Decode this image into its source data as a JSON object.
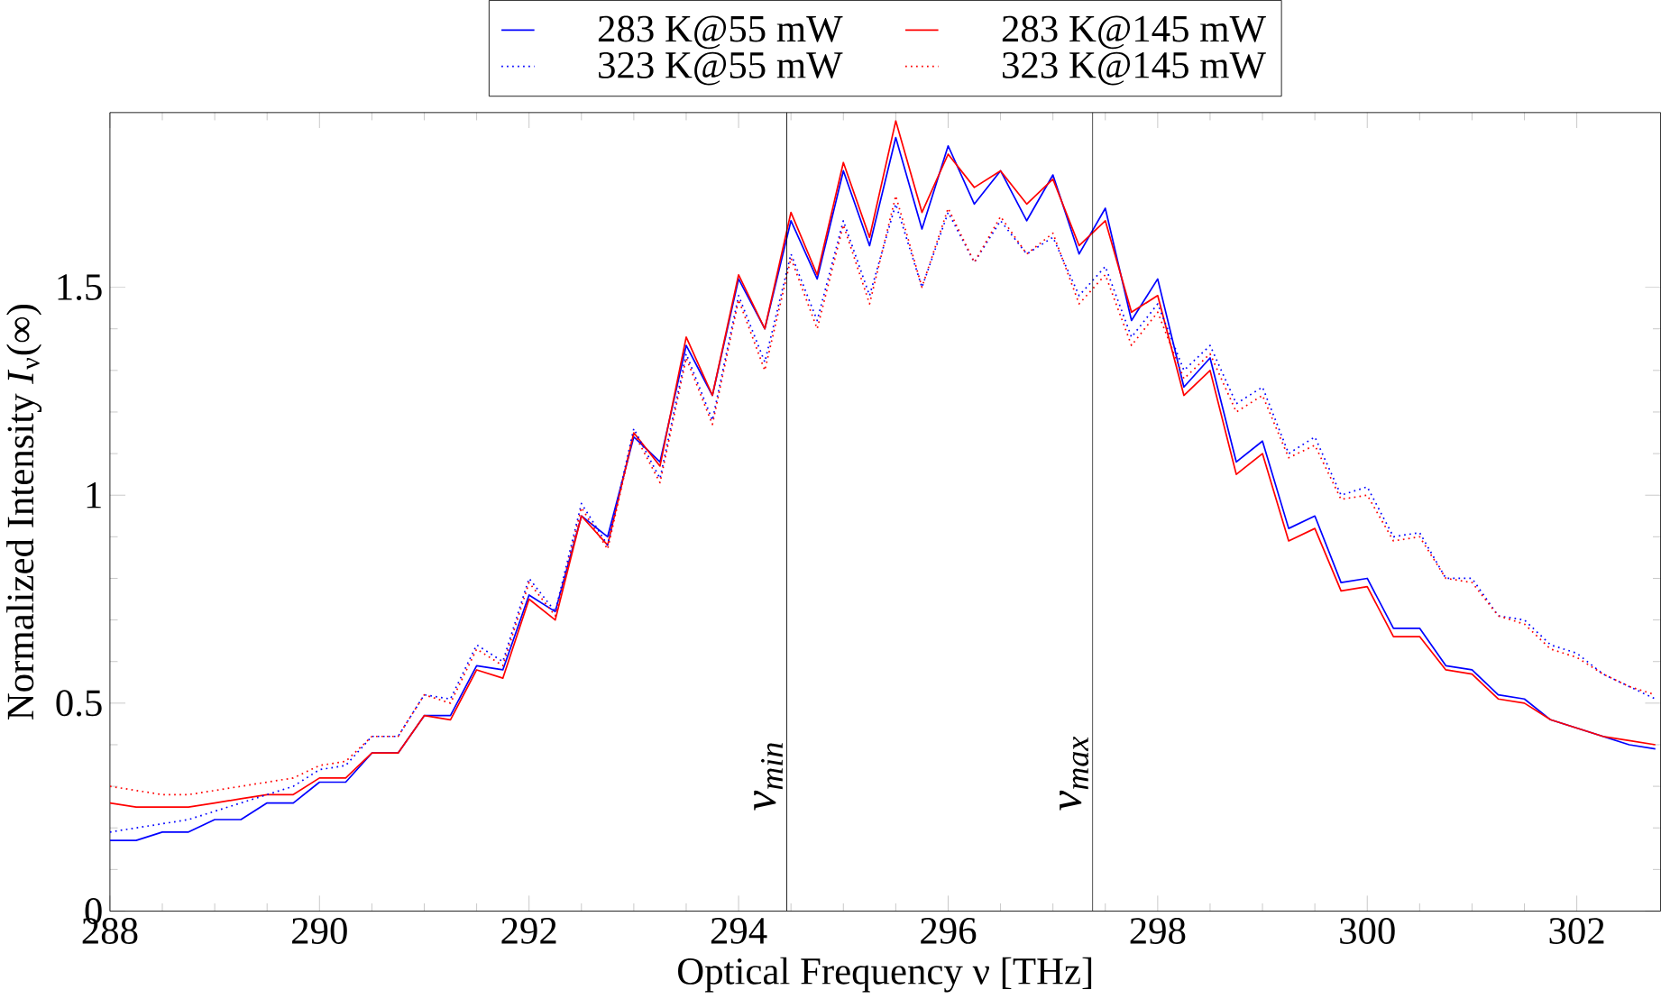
{
  "chart_data": {
    "type": "line",
    "xlabel": "Optical Frequency ν [THz]",
    "ylabel": "Normalized Intensity *I*$_{ν}$(∞)",
    "x": [
      288,
      288.25,
      288.5,
      288.75,
      289,
      289.25,
      289.5,
      289.75,
      290,
      290.25,
      290.5,
      290.75,
      291,
      291.25,
      291.5,
      291.75,
      292,
      292.25,
      292.5,
      292.75,
      293,
      293.25,
      293.5,
      293.75,
      294,
      294.25,
      294.5,
      294.75,
      295,
      295.25,
      295.5,
      295.75,
      296,
      296.25,
      296.5,
      296.75,
      297,
      297.25,
      297.5,
      297.75,
      298,
      298.25,
      298.5,
      298.75,
      299,
      299.25,
      299.5,
      299.75,
      300,
      300.25,
      300.5,
      300.75,
      301,
      301.25,
      301.5,
      301.75,
      302,
      302.25,
      302.5,
      302.75
    ],
    "series": [
      {
        "name": "283 K@55 mW",
        "color": "#0000ff",
        "line_style": "solid",
        "values": [
          0.17,
          0.17,
          0.19,
          0.19,
          0.22,
          0.22,
          0.26,
          0.26,
          0.31,
          0.31,
          0.38,
          0.38,
          0.47,
          0.47,
          0.59,
          0.58,
          0.76,
          0.72,
          0.95,
          0.9,
          1.14,
          1.08,
          1.36,
          1.24,
          1.52,
          1.4,
          1.66,
          1.52,
          1.78,
          1.6,
          1.86,
          1.64,
          1.84,
          1.7,
          1.78,
          1.66,
          1.77,
          1.58,
          1.69,
          1.42,
          1.52,
          1.26,
          1.33,
          1.08,
          1.13,
          0.92,
          0.95,
          0.79,
          0.8,
          0.68,
          0.68,
          0.59,
          0.58,
          0.52,
          0.51,
          0.46,
          0.44,
          0.42,
          0.4,
          0.39
        ]
      },
      {
        "name": "283 K@145 mW",
        "color": "#ff0000",
        "line_style": "solid",
        "values": [
          0.26,
          0.25,
          0.25,
          0.25,
          0.26,
          0.27,
          0.28,
          0.28,
          0.32,
          0.32,
          0.38,
          0.38,
          0.47,
          0.46,
          0.58,
          0.56,
          0.75,
          0.7,
          0.95,
          0.88,
          1.15,
          1.07,
          1.38,
          1.24,
          1.53,
          1.4,
          1.68,
          1.53,
          1.8,
          1.62,
          1.9,
          1.68,
          1.82,
          1.74,
          1.78,
          1.7,
          1.76,
          1.6,
          1.66,
          1.44,
          1.48,
          1.24,
          1.3,
          1.05,
          1.1,
          0.89,
          0.92,
          0.77,
          0.78,
          0.66,
          0.66,
          0.58,
          0.57,
          0.51,
          0.5,
          0.46,
          0.44,
          0.42,
          0.41,
          0.4
        ]
      },
      {
        "name": "323 K@55 mW",
        "color": "#0000ff",
        "line_style": "dotted",
        "values": [
          0.19,
          0.2,
          0.21,
          0.22,
          0.24,
          0.26,
          0.28,
          0.3,
          0.34,
          0.35,
          0.42,
          0.42,
          0.52,
          0.51,
          0.64,
          0.6,
          0.8,
          0.72,
          0.98,
          0.88,
          1.16,
          1.04,
          1.34,
          1.18,
          1.48,
          1.32,
          1.58,
          1.42,
          1.66,
          1.48,
          1.7,
          1.5,
          1.68,
          1.56,
          1.66,
          1.58,
          1.62,
          1.48,
          1.55,
          1.38,
          1.46,
          1.3,
          1.36,
          1.22,
          1.26,
          1.1,
          1.14,
          1.0,
          1.02,
          0.9,
          0.91,
          0.8,
          0.8,
          0.71,
          0.7,
          0.64,
          0.62,
          0.57,
          0.54,
          0.51
        ]
      },
      {
        "name": "323 K@145 mW",
        "color": "#ff0000",
        "line_style": "dotted",
        "values": [
          0.3,
          0.29,
          0.28,
          0.28,
          0.29,
          0.3,
          0.31,
          0.32,
          0.35,
          0.36,
          0.42,
          0.42,
          0.52,
          0.5,
          0.63,
          0.59,
          0.79,
          0.71,
          0.97,
          0.87,
          1.15,
          1.03,
          1.33,
          1.17,
          1.47,
          1.3,
          1.57,
          1.4,
          1.65,
          1.46,
          1.72,
          1.5,
          1.69,
          1.56,
          1.67,
          1.58,
          1.63,
          1.46,
          1.53,
          1.36,
          1.44,
          1.28,
          1.34,
          1.2,
          1.24,
          1.09,
          1.12,
          0.99,
          1.0,
          0.89,
          0.9,
          0.8,
          0.79,
          0.71,
          0.69,
          0.63,
          0.61,
          0.57,
          0.54,
          0.52
        ]
      }
    ],
    "xlim": [
      288,
      302.8
    ],
    "ylim": [
      0,
      1.92
    ],
    "xticks": [
      288,
      290,
      292,
      294,
      296,
      298,
      300,
      302
    ],
    "yticks": [
      0,
      0.5,
      1,
      1.5
    ],
    "ref_lines": [
      {
        "axis": "x",
        "value": 294.46,
        "label": "ν$_{min}$",
        "color": "#000000"
      },
      {
        "axis": "x",
        "value": 297.38,
        "label": "ν$_{max}$",
        "color": "#000000"
      }
    ],
    "legend": "top",
    "grid": false
  }
}
